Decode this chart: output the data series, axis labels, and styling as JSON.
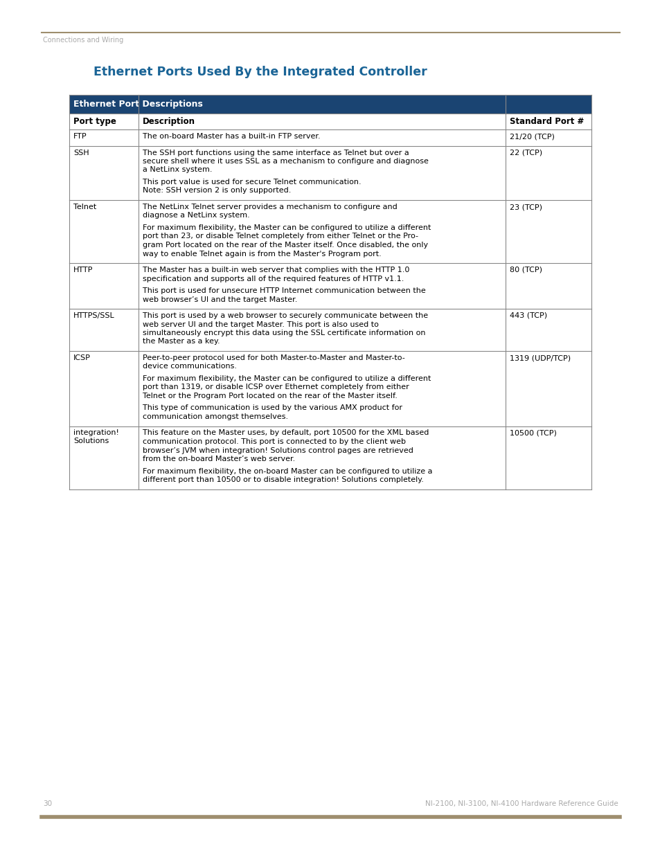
{
  "page_bg": "#ffffff",
  "top_line_color": "#9e8e6e",
  "top_line_label": "Connections and Wiring",
  "top_line_label_color": "#aaaaaa",
  "title": "Ethernet Ports Used By the Integrated Controller",
  "title_color": "#1a6496",
  "header_bg": "#1a4472",
  "header_text_color": "#ffffff",
  "header_label": "Ethernet Port Descriptions",
  "col_headers": [
    "Port type",
    "Description",
    "Standard Port #"
  ],
  "table_border_color": "#888888",
  "table_text_color": "#000000",
  "footer_line_color": "#9e8e6e",
  "footer_page_num": "30",
  "footer_right_text": "NI-2100, NI-3100, NI-4100 Hardware Reference Guide",
  "footer_text_color": "#aaaaaa",
  "rows": [
    {
      "port": "FTP",
      "description": "The on-board Master has a built-in FTP server.",
      "port_num": "21/20 (TCP)"
    },
    {
      "port": "SSH",
      "description": "The SSH port functions using the same interface as Telnet but over a\nsecure shell where it uses SSL as a mechanism to configure and diagnose\na NetLinx system.\n\nThis port value is used for secure Telnet communication.\nNote: SSH version 2 is only supported.",
      "port_num": "22 (TCP)"
    },
    {
      "port": "Telnet",
      "description": "The NetLinx Telnet server provides a mechanism to configure and\ndiagnose a NetLinx system.\n\nFor maximum flexibility, the Master can be configured to utilize a different\nport than 23, or disable Telnet completely from either Telnet or the Pro-\ngram Port located on the rear of the Master itself. Once disabled, the only\nway to enable Telnet again is from the Master's Program port.",
      "port_num": "23 (TCP)"
    },
    {
      "port": "HTTP",
      "description": "The Master has a built-in web server that complies with the HTTP 1.0\nspecification and supports all of the required features of HTTP v1.1.\n\nThis port is used for unsecure HTTP Internet communication between the\nweb browser’s UI and the target Master.",
      "port_num": "80 (TCP)"
    },
    {
      "port": "HTTPS/SSL",
      "description": "This port is used by a web browser to securely communicate between the\nweb server UI and the target Master. This port is also used to\nsimultaneously encrypt this data using the SSL certificate information on\nthe Master as a key.",
      "port_num": "443 (TCP)"
    },
    {
      "port": "ICSP",
      "description": "Peer-to-peer protocol used for both Master-to-Master and Master-to-\ndevice communications.\n\nFor maximum flexibility, the Master can be configured to utilize a different\nport than 1319, or disable ICSP over Ethernet completely from either\nTelnet or the Program Port located on the rear of the Master itself.\n\nThis type of communication is used by the various AMX product for\ncommunication amongst themselves.",
      "port_num": "1319 (UDP/TCP)"
    },
    {
      "port": "integration!\nSolutions",
      "description": "This feature on the Master uses, by default, port 10500 for the XML based\ncommunication protocol. This port is connected to by the client web\nbrowser’s JVM when integration! Solutions control pages are retrieved\nfrom the on-board Master’s web server.\n\nFor maximum flexibility, the on-board Master can be configured to utilize a\ndifferent port than 10500 or to disable integration! Solutions completely.",
      "port_num": "10500 (TCP)"
    }
  ]
}
